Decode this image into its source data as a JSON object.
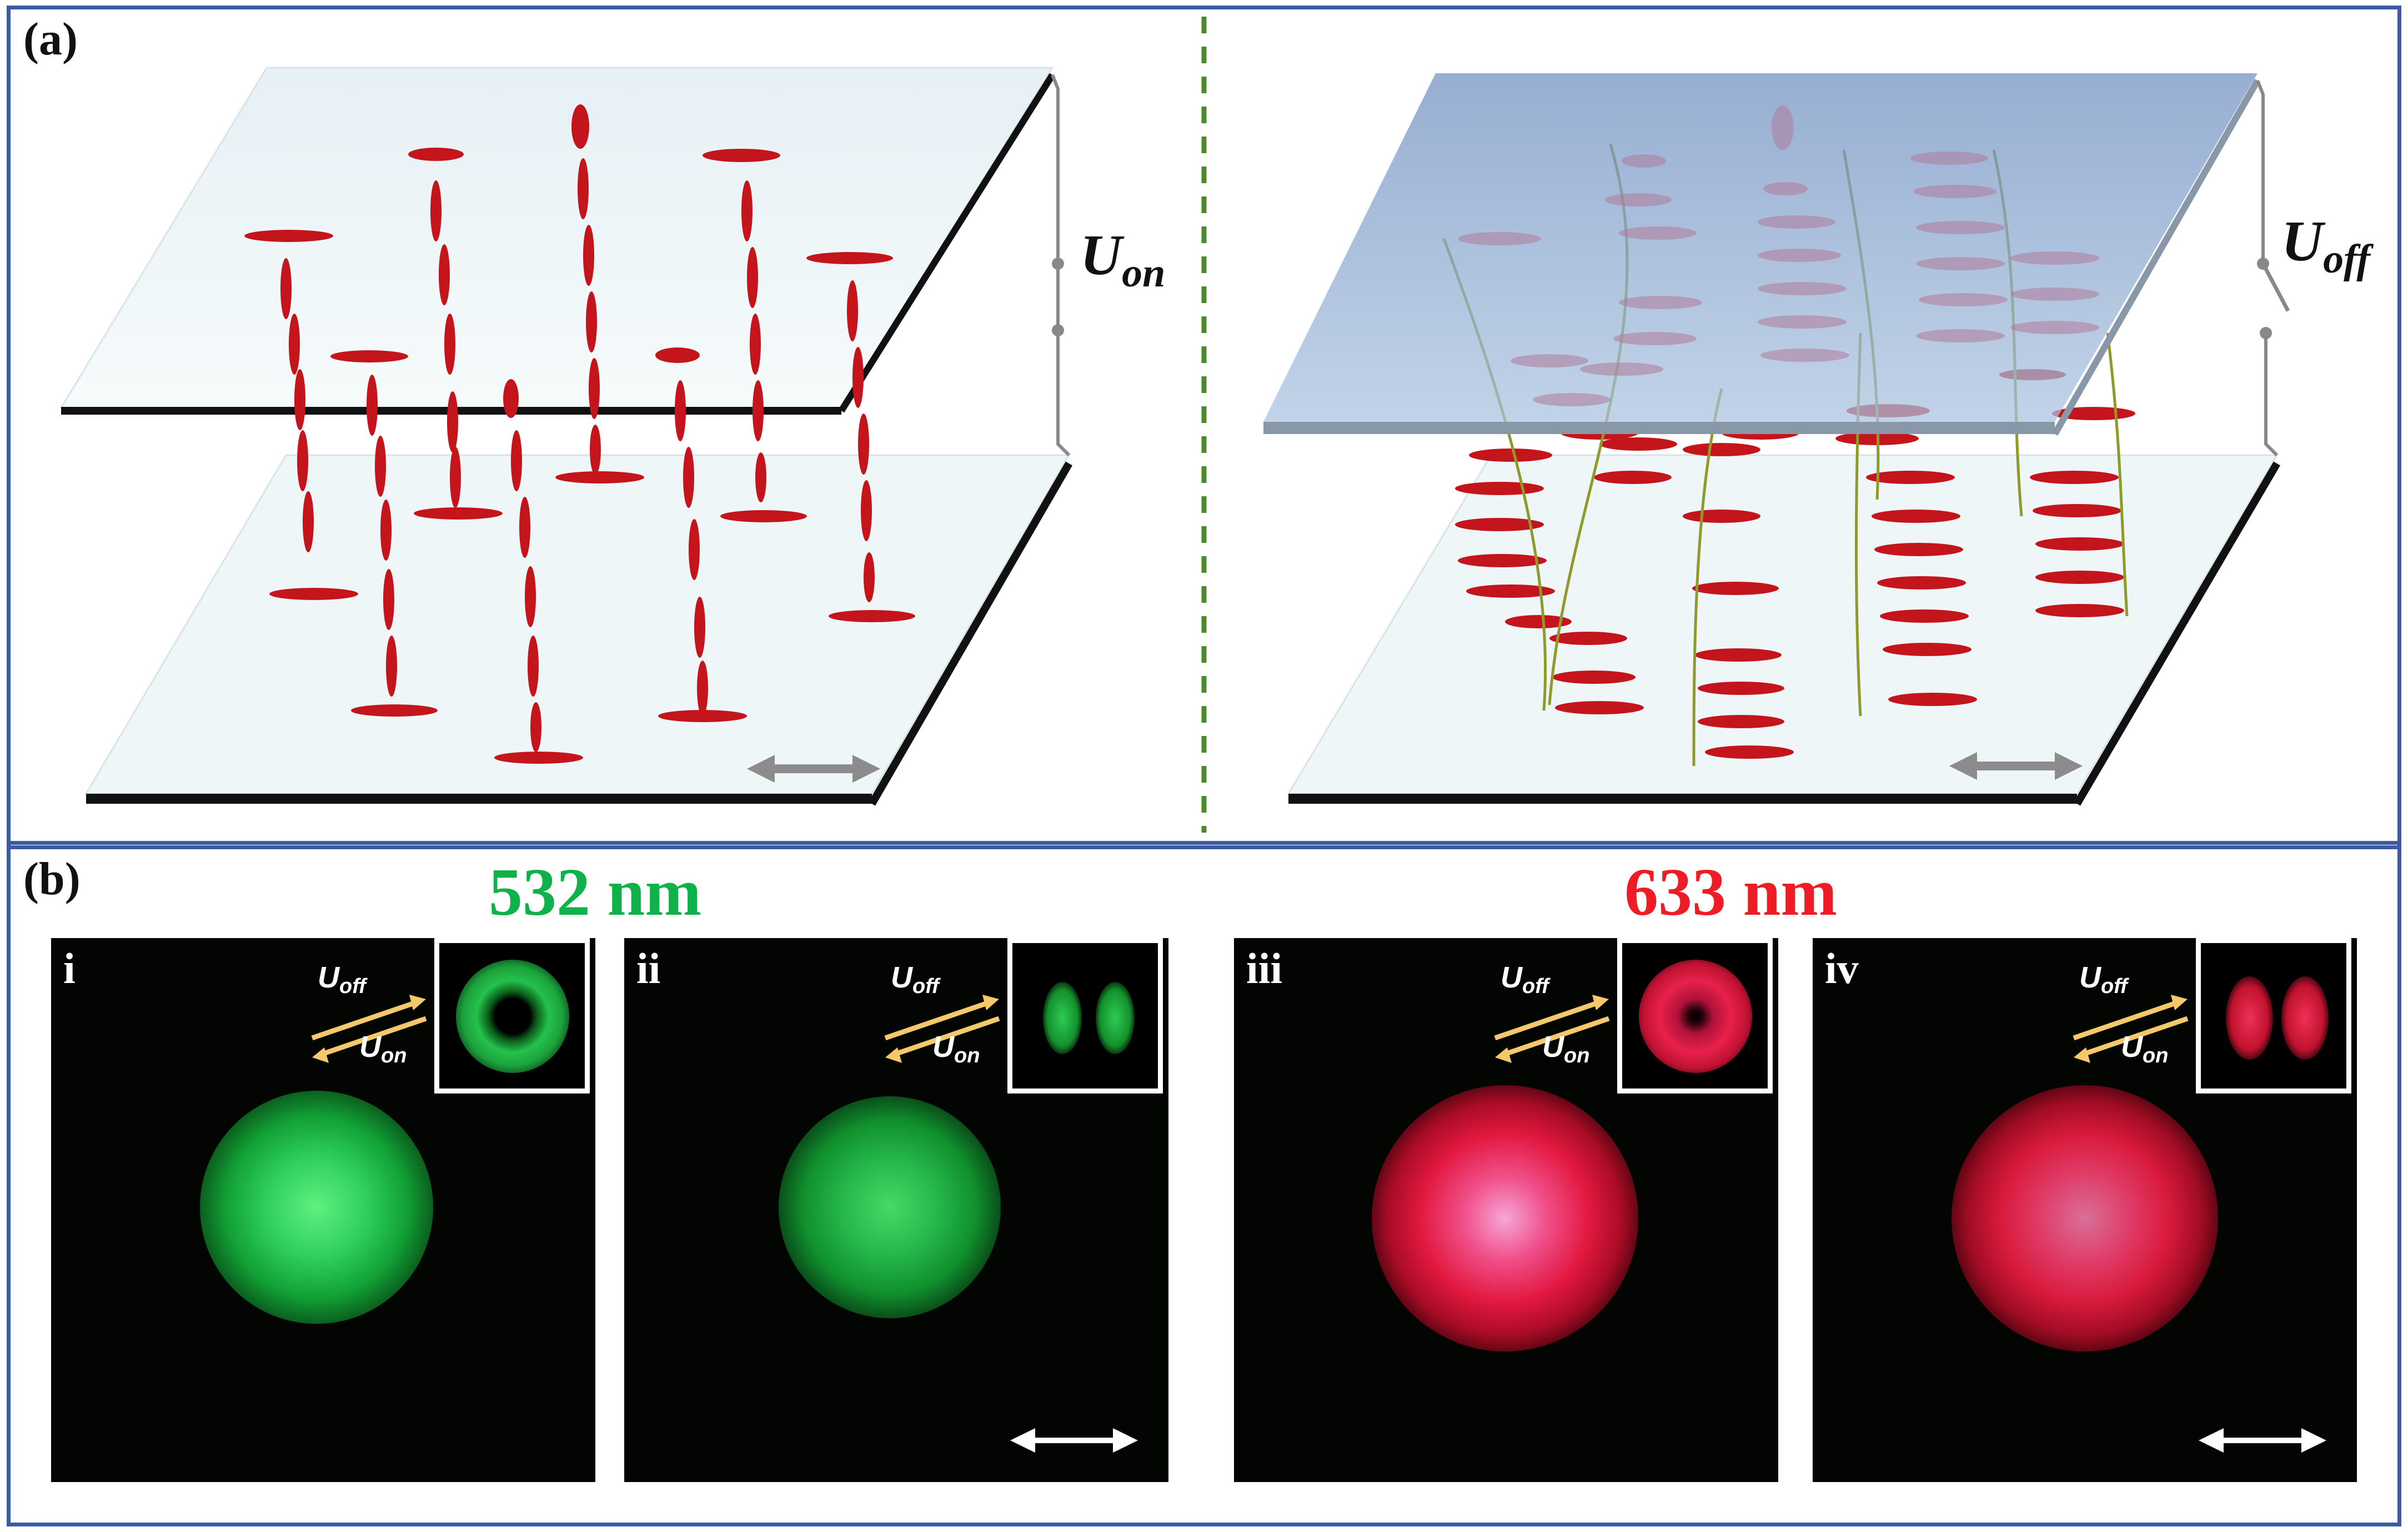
{
  "panel_a": {
    "label": "(a)",
    "left_voltage": {
      "main": "U",
      "sub": "on"
    },
    "right_voltage": {
      "main": "U",
      "sub": "off"
    }
  },
  "panel_b": {
    "label": "(b)",
    "wavelength_green": "532 nm",
    "wavelength_red": "633 nm",
    "green_color": "#0fb24a",
    "red_color": "#ee1c25",
    "frames": [
      {
        "numeral": "i",
        "u_off": "off",
        "u_on": "on",
        "inset_pattern": "donut-ring",
        "has_polarizer_arrow": false
      },
      {
        "numeral": "ii",
        "u_off": "off",
        "u_on": "on",
        "inset_pattern": "two-lobes",
        "has_polarizer_arrow": true
      },
      {
        "numeral": "iii",
        "u_off": "off",
        "u_on": "on",
        "inset_pattern": "donut-ring",
        "has_polarizer_arrow": false
      },
      {
        "numeral": "iv",
        "u_off": "off",
        "u_on": "on",
        "inset_pattern": "two-lobes",
        "has_polarizer_arrow": true
      }
    ],
    "u_symbol": "U"
  },
  "colors": {
    "frame_border": "#3b5ba5",
    "divider": "#4a8a2a",
    "lc_molecule": "#c4151c",
    "arrow_yellow": "#f5c86a",
    "helix_line": "#8e9a2a"
  }
}
